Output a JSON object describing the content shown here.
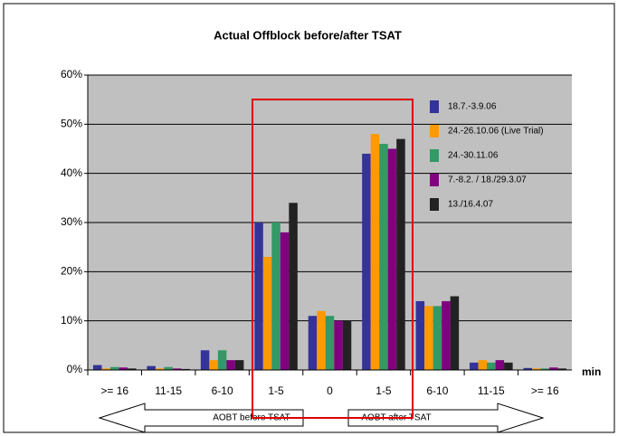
{
  "chart_data": {
    "type": "bar",
    "title": "Actual Offblock before/after TSAT",
    "categories": [
      ">= 16",
      "11-15",
      "6-10",
      "1-5",
      "0",
      "1-5",
      "6-10",
      "11-15",
      ">= 16"
    ],
    "series": [
      {
        "name": "18.7.-3.9.06",
        "color": "#333399",
        "values": [
          1,
          0.8,
          4,
          30,
          11,
          44,
          14,
          1.5,
          0.4
        ]
      },
      {
        "name": "24.-26.10.06 (Live Trial)",
        "color": "#ff9900",
        "values": [
          0.3,
          0.3,
          2,
          23,
          12,
          48,
          13,
          2,
          0.3
        ]
      },
      {
        "name": "24.-30.11.06",
        "color": "#339966",
        "values": [
          0.6,
          0.6,
          4,
          30,
          11,
          46,
          13,
          1.5,
          0.3
        ]
      },
      {
        "name": "7.-8.2. / 18./29.3.07",
        "color": "#800080",
        "values": [
          0.5,
          0.3,
          2,
          28,
          10,
          45,
          14,
          2,
          0.5
        ]
      },
      {
        "name": "13./16.4.07",
        "color": "#222222",
        "values": [
          0.3,
          0.2,
          2,
          34,
          10,
          47,
          15,
          1.5,
          0.3
        ]
      }
    ],
    "xlabel": "min",
    "annotations": [
      "AOBT before TSAT",
      "AOBT after TSAT"
    ],
    "ylim": [
      0,
      60
    ],
    "yticks": [
      {
        "value": 0,
        "label": "0%"
      },
      {
        "value": 10,
        "label": "10%"
      },
      {
        "value": 20,
        "label": "20%"
      },
      {
        "value": 30,
        "label": "30%"
      },
      {
        "value": 40,
        "label": "40%"
      },
      {
        "value": 50,
        "label": "50%"
      },
      {
        "value": 60,
        "label": "60%"
      }
    ],
    "grid": true,
    "legend": "upper right"
  }
}
